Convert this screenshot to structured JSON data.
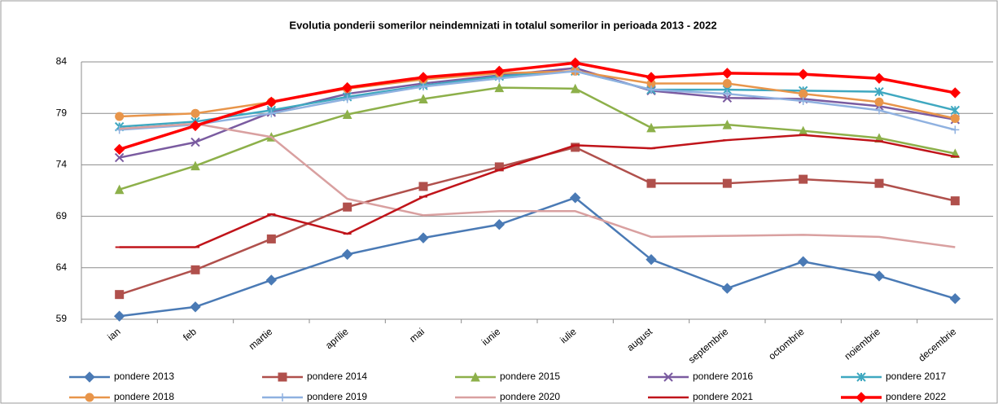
{
  "chart_data": {
    "type": "line",
    "title": "Evolutia ponderii somerilor neindemnizati in totalul somerilor in perioada 2013 -  2022",
    "categories": [
      "ian",
      "feb",
      "martie",
      "aprilie",
      "mai",
      "iunie",
      "iulie",
      "august",
      "septembrie",
      "octombrie",
      "noiembrie",
      "decembrie"
    ],
    "ylim": [
      59,
      84
    ],
    "yticks": [
      59,
      64,
      69,
      74,
      79,
      84
    ],
    "grid": true,
    "series": [
      {
        "name": "pondere 2013",
        "color": "#4a7ab5",
        "marker": "diamond",
        "values": [
          59.3,
          60.2,
          62.8,
          65.3,
          66.9,
          68.2,
          70.8,
          64.8,
          62.0,
          64.6,
          63.2,
          61.0
        ]
      },
      {
        "name": "pondere 2014",
        "color": "#b0504c",
        "marker": "square",
        "values": [
          61.4,
          63.8,
          66.8,
          69.9,
          71.9,
          73.8,
          75.7,
          72.2,
          72.2,
          72.6,
          72.2,
          70.5
        ]
      },
      {
        "name": "pondere 2015",
        "color": "#8db04a",
        "marker": "triangle",
        "values": [
          71.6,
          73.9,
          76.7,
          78.9,
          80.4,
          81.5,
          81.4,
          77.6,
          77.9,
          77.3,
          76.6,
          75.1
        ]
      },
      {
        "name": "pondere 2016",
        "color": "#7a5ba0",
        "marker": "x",
        "values": [
          74.7,
          76.2,
          79.1,
          80.9,
          81.9,
          82.7,
          83.4,
          81.2,
          80.5,
          80.4,
          79.7,
          78.4
        ]
      },
      {
        "name": "pondere 2017",
        "color": "#3fa8c0",
        "marker": "star",
        "values": [
          77.7,
          78.2,
          79.3,
          80.6,
          81.7,
          82.6,
          83.1,
          81.3,
          81.3,
          81.2,
          81.1,
          79.3
        ]
      },
      {
        "name": "pondere 2018",
        "color": "#e8954a",
        "marker": "circle",
        "values": [
          78.7,
          79.0,
          80.1,
          81.4,
          82.3,
          82.9,
          83.1,
          81.9,
          81.9,
          80.9,
          80.1,
          78.5
        ]
      },
      {
        "name": "pondere 2019",
        "color": "#8fb1e0",
        "marker": "plus",
        "values": [
          77.4,
          77.9,
          79.0,
          80.4,
          81.6,
          82.4,
          83.1,
          81.3,
          80.9,
          80.2,
          79.3,
          77.4
        ]
      },
      {
        "name": "pondere 2020",
        "color": "#d9a0a0",
        "marker": "none",
        "values": [
          77.5,
          78.0,
          76.7,
          70.7,
          69.1,
          69.5,
          69.5,
          67.0,
          67.1,
          67.2,
          67.0,
          66.0
        ]
      },
      {
        "name": "pondere 2021",
        "color": "#c0141a",
        "marker": "dash",
        "values": [
          66.0,
          66.0,
          69.2,
          67.3,
          70.9,
          73.5,
          75.9,
          75.6,
          76.4,
          76.9,
          76.3,
          74.8
        ]
      },
      {
        "name": "pondere 2022",
        "color": "#ff0000",
        "marker": "diamond",
        "values": [
          75.5,
          77.8,
          80.1,
          81.5,
          82.5,
          83.1,
          83.9,
          82.5,
          82.9,
          82.8,
          82.4,
          81.0
        ]
      }
    ]
  }
}
